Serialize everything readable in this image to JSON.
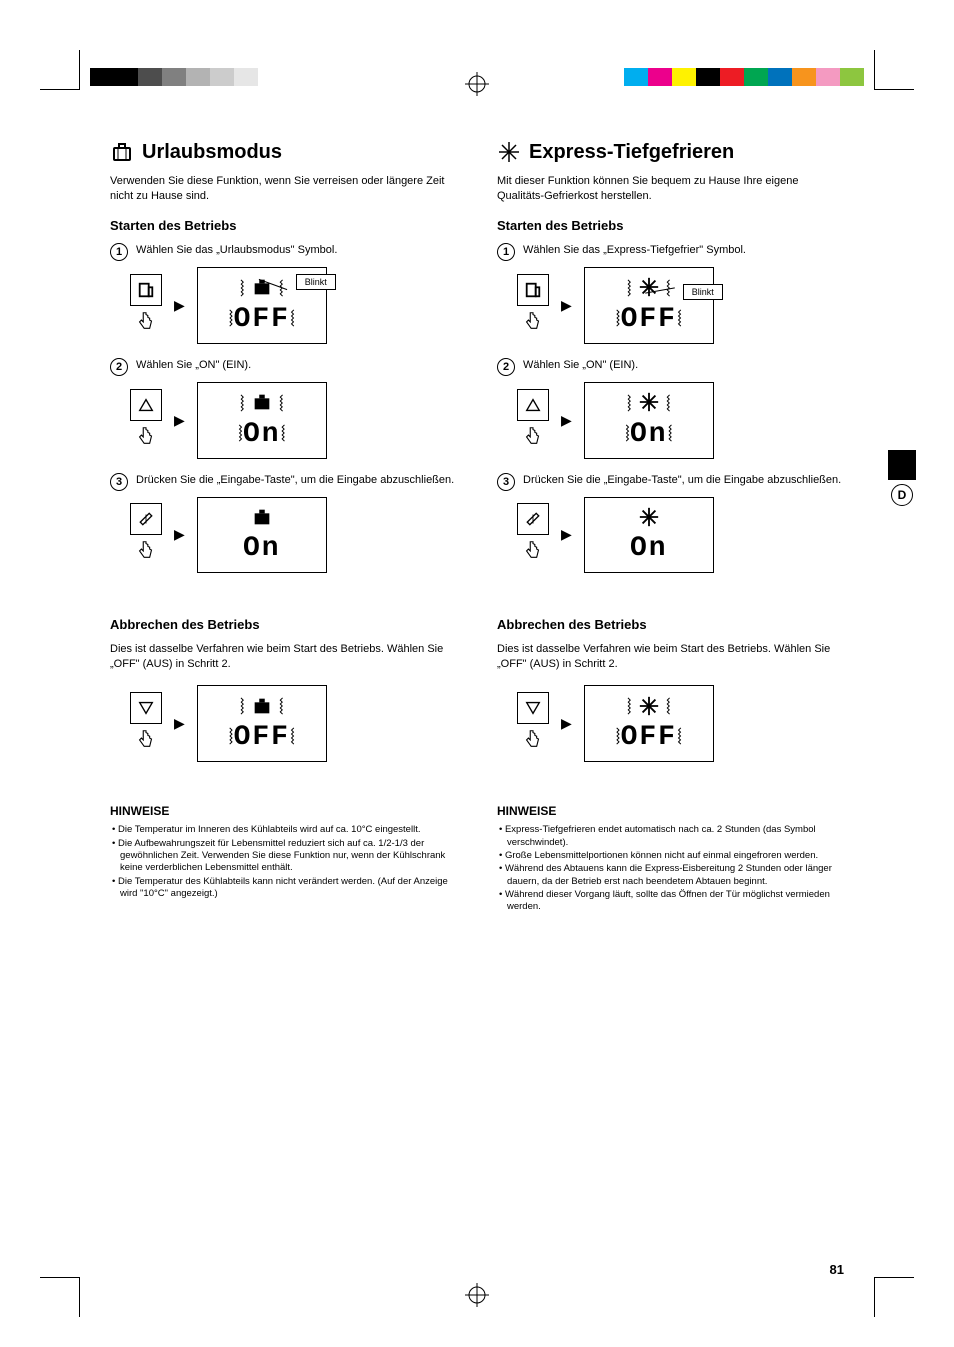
{
  "crop_colors_left": [
    "#000000",
    "#000000",
    "#4d4d4d",
    "#808080",
    "#b3b3b3",
    "#cccccc",
    "#e6e6e6"
  ],
  "crop_colors_right": [
    "#00aeef",
    "#ec008c",
    "#fff200",
    "#000000",
    "#ed1c24",
    "#00a651",
    "#0072bc",
    "#f7941d",
    "#f49ac1",
    "#8dc63f"
  ],
  "side_lang": "D",
  "page_number": "81",
  "left": {
    "title": "Urlaubsmodus",
    "intro": "Verwenden Sie diese Funktion, wenn Sie verreisen oder längere Zeit nicht zu Hause sind.",
    "start_heading": "Starten des Betriebs",
    "step1": "Wählen Sie das „Urlaubsmodus\" Symbol.",
    "step2": "Wählen Sie „ON\" (EIN).",
    "step3": "Drücken Sie die „Eingabe-Taste\", um die Eingabe abzuschließen.",
    "blinkt": "Blinkt",
    "off_seg": "OFF",
    "on_seg": "On",
    "cancel_heading": "Abbrechen des Betriebs",
    "cancel_text": "Dies ist dasselbe Verfahren wie beim Start des Betriebs. Wählen Sie „OFF\" (AUS) in Schritt 2.",
    "hinweise": "HINWEISE",
    "notes": [
      "Die Temperatur im Inneren des Kühlabteils wird auf ca. 10°C eingestellt.",
      "Die Aufbewahrungszeit für Lebensmittel reduziert sich auf ca. 1/2-1/3 der gewöhnlichen Zeit. Verwenden Sie diese Funktion nur, wenn der Kühlschrank keine verderblichen Lebensmittel enthält.",
      "Die Temperatur des Kühlabteils kann nicht verändert werden. (Auf der Anzeige wird \"10°C\" angezeigt.)"
    ]
  },
  "right": {
    "title": "Express-Tiefgefrieren",
    "intro": "Mit dieser Funktion können Sie bequem zu Hause Ihre eigene Qualitäts-Gefrierkost herstellen.",
    "start_heading": "Starten des Betriebs",
    "step1": "Wählen Sie das „Express-Tiefgefrier\" Symbol.",
    "step2": "Wählen Sie „ON\" (EIN).",
    "step3": "Drücken Sie die „Eingabe-Taste\", um die Eingabe abzuschließen.",
    "blinkt": "Blinkt",
    "off_seg": "OFF",
    "on_seg": "On",
    "cancel_heading": "Abbrechen des Betriebs",
    "cancel_text": "Dies ist dasselbe Verfahren wie beim Start des Betriebs. Wählen Sie „OFF\" (AUS) in Schritt 2.",
    "hinweise": "HINWEISE",
    "notes": [
      "Express-Tiefgefrieren endet automatisch nach ca. 2 Stunden (das Symbol verschwindet).",
      "Große Lebensmittelportionen können nicht auf einmal eingefroren werden.",
      "Während des Abtauens kann die Express-Eisbereitung 2 Stunden oder länger dauern, da der Betrieb erst nach beendetem Abtauen beginnt.",
      "Während dieser Vorgang läuft, sollte das Öffnen der Tür möglichst vermieden werden."
    ]
  }
}
